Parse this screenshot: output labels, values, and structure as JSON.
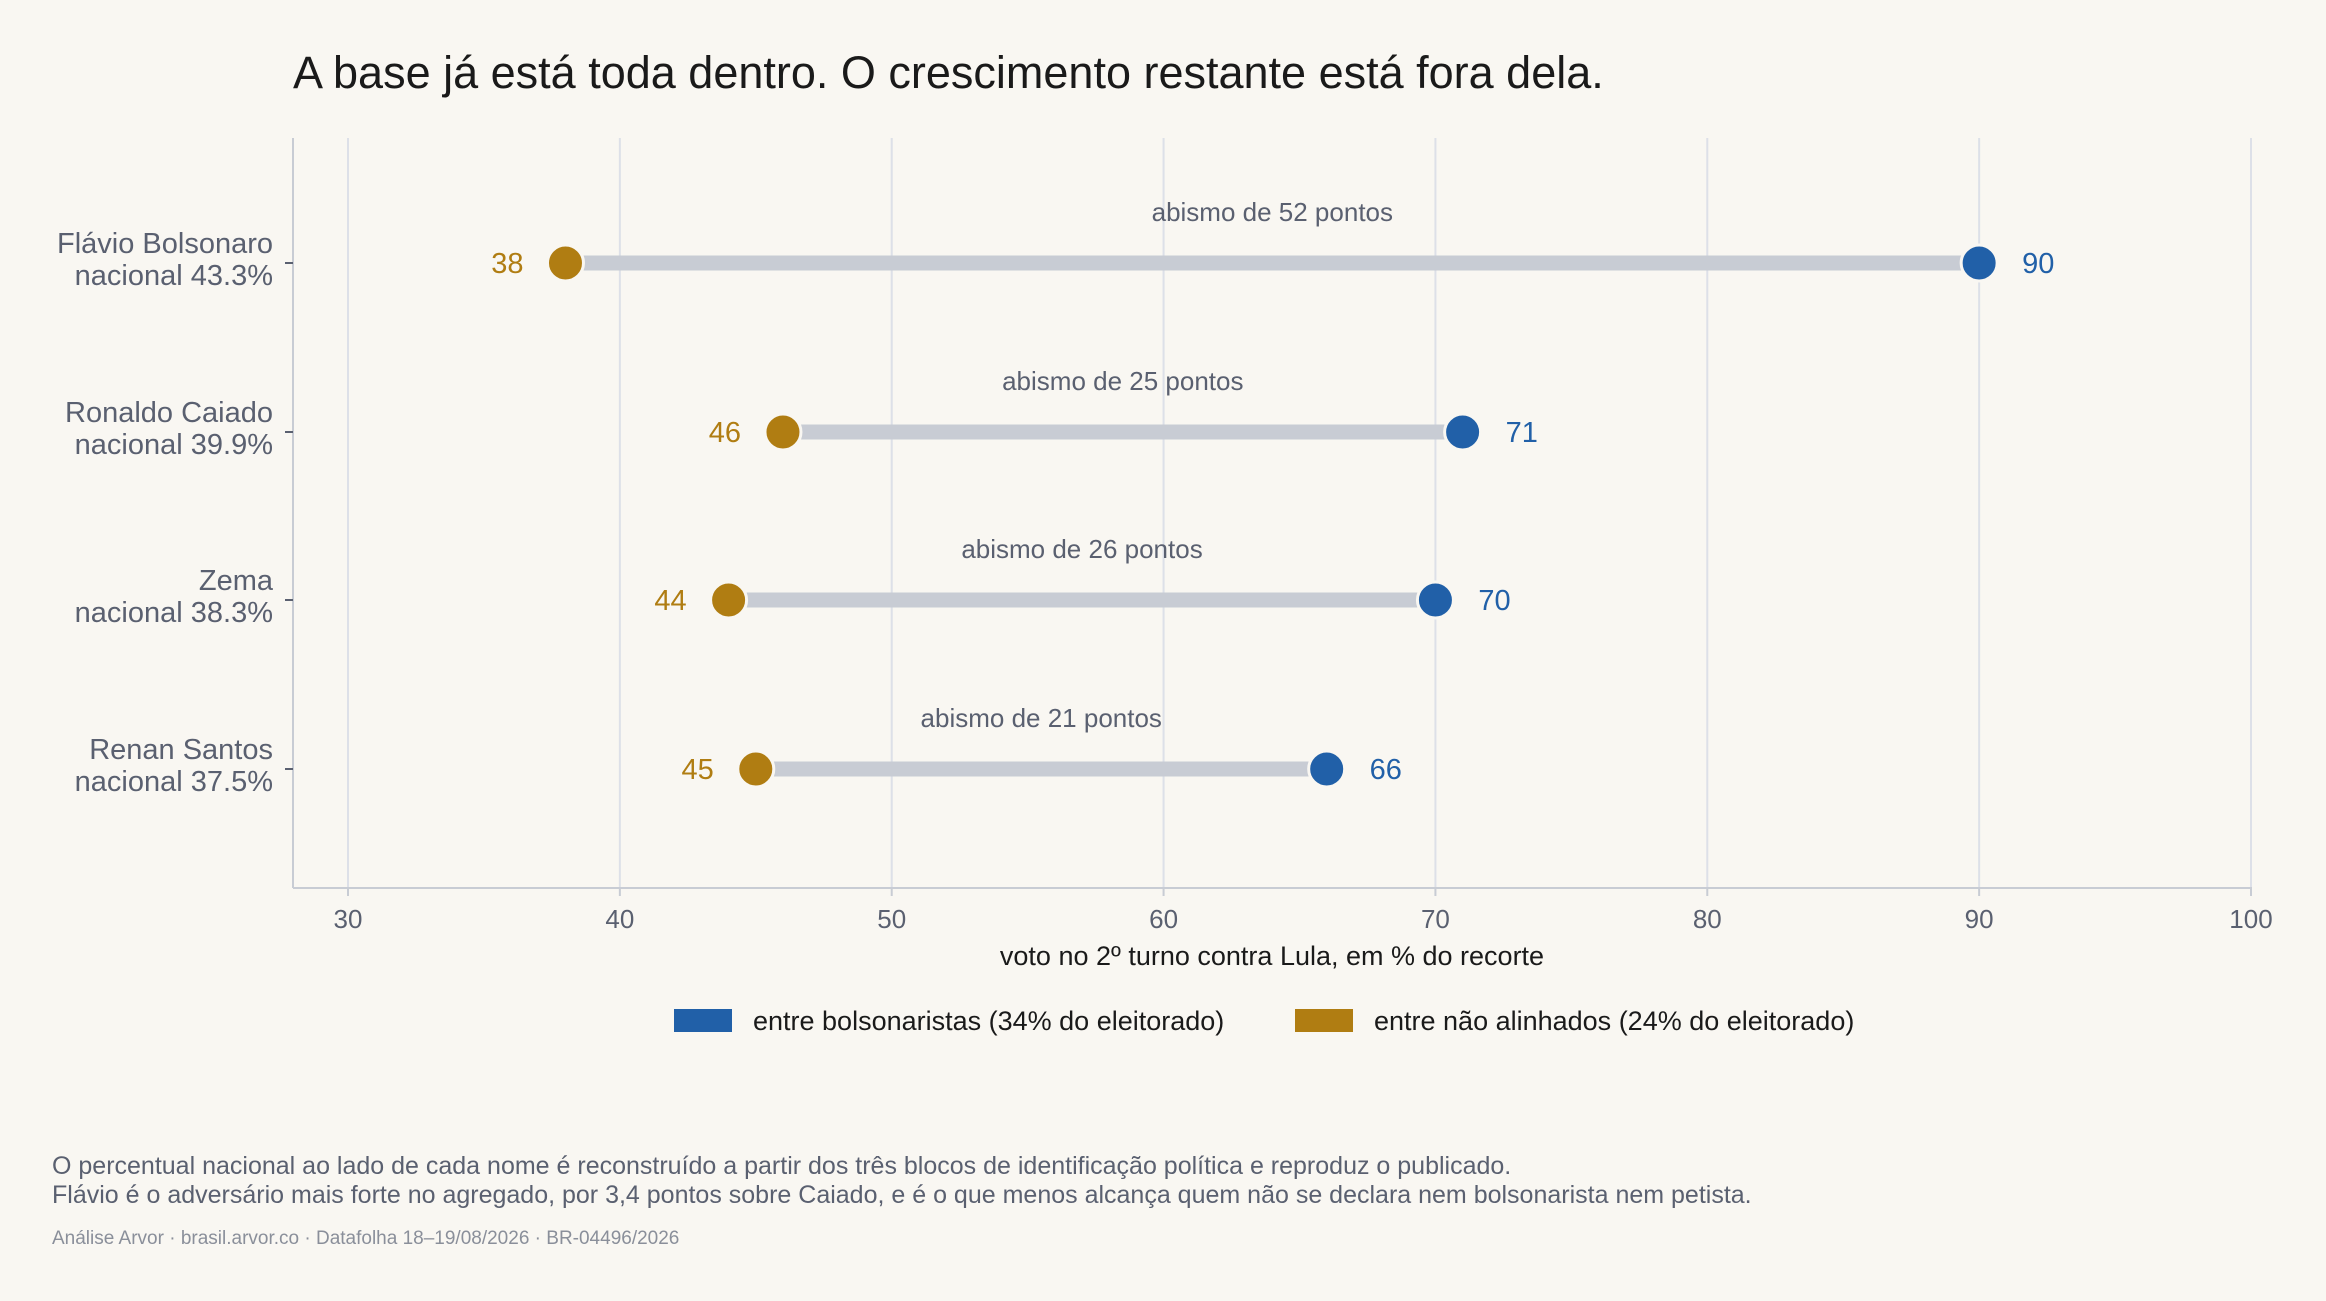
{
  "chart_data": {
    "type": "dumbbell",
    "title": "A base já está toda dentro. O crescimento restante está fora dela.",
    "xlabel": "voto no 2º turno contra Lula, em % do recorte",
    "xlim": [
      28,
      100
    ],
    "xticks": [
      30,
      40,
      50,
      60,
      70,
      80,
      90,
      100
    ],
    "grid": "vertical",
    "legend_placement": "bottom",
    "series": [
      {
        "name": "entre bolsonaristas (34% do eleitorado)",
        "color": "#2160a8"
      },
      {
        "name": "entre não alinhados (24% do eleitorado)",
        "color": "#b07d12"
      }
    ],
    "rows": [
      {
        "name": "Flávio Bolsonaro",
        "national": "nacional 43.3%",
        "bolsonaristas": 90,
        "nao_alinhados": 38,
        "gap_label": "abismo de 52 pontos"
      },
      {
        "name": "Ronaldo Caiado",
        "national": "nacional 39.9%",
        "bolsonaristas": 71,
        "nao_alinhados": 46,
        "gap_label": "abismo de 25 pontos"
      },
      {
        "name": "Zema",
        "national": "nacional 38.3%",
        "bolsonaristas": 70,
        "nao_alinhados": 44,
        "gap_label": "abismo de 26 pontos"
      },
      {
        "name": "Renan Santos",
        "national": "nacional 37.5%",
        "bolsonaristas": 66,
        "nao_alinhados": 45,
        "gap_label": "abismo de 21 pontos"
      }
    ]
  },
  "footer": {
    "note_line1": "O percentual nacional ao lado de cada nome é reconstruído a partir dos três blocos de identificação política e reproduz o publicado.",
    "note_line2": "Flávio é o adversário mais forte no agregado, por 3,4 pontos sobre Caiado, e é o que menos alcança quem não se declara nem bolsonarista nem petista.",
    "source": "Análise Arvor · brasil.arvor.co · Datafolha 18–19/08/2026 · BR-04496/2026"
  },
  "colors": {
    "connector": "#c8ccd4",
    "grid": "#dde0e8",
    "axis": "#c8ccd4"
  }
}
